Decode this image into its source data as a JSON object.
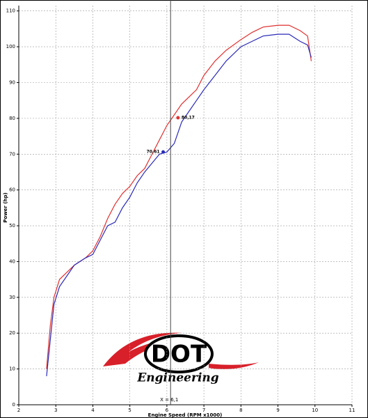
{
  "chart_data": {
    "type": "line",
    "x_label": "Engine Speed (RPM x1000)",
    "y_label": "Power (hp)",
    "x": [
      2.75,
      2.85,
      2.95,
      3.1,
      3.3,
      3.5,
      3.8,
      4.0,
      4.2,
      4.4,
      4.6,
      4.8,
      5.0,
      5.2,
      5.4,
      5.6,
      5.8,
      6.0,
      6.2,
      6.4,
      6.6,
      6.8,
      7.0,
      7.3,
      7.6,
      8.0,
      8.3,
      8.6,
      9.0,
      9.3,
      9.6,
      9.8,
      9.9
    ],
    "series": [
      {
        "color": "#e03030",
        "values": [
          10,
          22,
          30,
          35,
          37,
          39,
          41,
          43,
          47,
          52,
          56,
          59,
          61,
          64,
          66,
          70,
          74,
          78,
          81,
          84,
          86,
          88,
          92,
          96,
          99,
          102,
          104,
          105.5,
          106,
          106,
          104.5,
          103,
          96
        ]
      },
      {
        "color": "#2a2ab8",
        "values": [
          8,
          18,
          28,
          33,
          36,
          39,
          41,
          42,
          46,
          50,
          51,
          55,
          58,
          62,
          65,
          67.5,
          70,
          70.6,
          73,
          79,
          82,
          85,
          88,
          92,
          96,
          100,
          101.5,
          103,
          103.5,
          103.5,
          101.5,
          100.5,
          97
        ]
      }
    ],
    "xlim": [
      2,
      11
    ],
    "ylim": [
      0,
      111.5
    ],
    "xticks": [
      2,
      3,
      4,
      5,
      6,
      7,
      8,
      9,
      10,
      11
    ],
    "yticks": [
      0,
      10,
      20,
      30,
      40,
      50,
      60,
      70,
      80,
      90,
      100,
      110
    ],
    "grid": true,
    "cursor": {
      "value": 6.1,
      "label": "X = 6,1"
    },
    "markers": [
      {
        "series": 0,
        "x": 6.3,
        "y": 80.17,
        "label": "80,17"
      },
      {
        "series": 1,
        "x": 5.9,
        "y": 70.61,
        "label": "70,61"
      }
    ]
  },
  "logo": {
    "name": "DOT",
    "tagline": "Engineering"
  }
}
